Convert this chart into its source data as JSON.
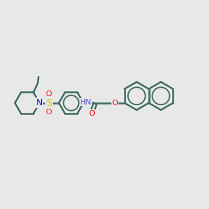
{
  "bg_color": "#e8e8e8",
  "bond_color": "#3d6b5e",
  "bond_width": 1.8,
  "font_size": 9,
  "fig_size": [
    3.0,
    3.0
  ],
  "dpi": 100,
  "xlim": [
    0,
    12
  ],
  "ylim": [
    0,
    10
  ]
}
